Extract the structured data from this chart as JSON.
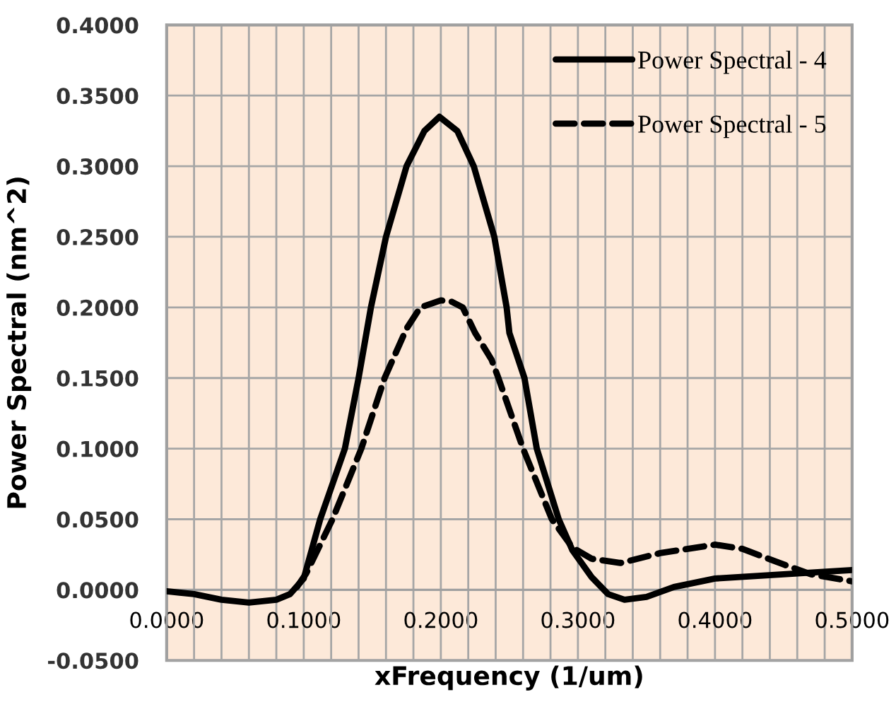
{
  "chart_data": {
    "type": "line",
    "xlabel": "xFrequency (1/um)",
    "ylabel": "Power Spectral (nm^2)",
    "xlim": [
      0,
      0.5
    ],
    "ylim": [
      -0.05,
      0.4
    ],
    "xticks": [
      {
        "value": 0,
        "label": "0.0000"
      },
      {
        "value": 0.02,
        "label": null
      },
      {
        "value": 0.04,
        "label": null
      },
      {
        "value": 0.06,
        "label": null
      },
      {
        "value": 0.08,
        "label": null
      },
      {
        "value": 0.1,
        "label": "0.1000"
      },
      {
        "value": 0.12,
        "label": null
      },
      {
        "value": 0.14,
        "label": null
      },
      {
        "value": 0.16,
        "label": null
      },
      {
        "value": 0.18,
        "label": null
      },
      {
        "value": 0.2,
        "label": "0.2000"
      },
      {
        "value": 0.22,
        "label": null
      },
      {
        "value": 0.24,
        "label": null
      },
      {
        "value": 0.26,
        "label": null
      },
      {
        "value": 0.28,
        "label": null
      },
      {
        "value": 0.3,
        "label": "0.3000"
      },
      {
        "value": 0.32,
        "label": null
      },
      {
        "value": 0.34,
        "label": null
      },
      {
        "value": 0.36,
        "label": null
      },
      {
        "value": 0.38,
        "label": null
      },
      {
        "value": 0.4,
        "label": "0.4000"
      },
      {
        "value": 0.42,
        "label": null
      },
      {
        "value": 0.44,
        "label": null
      },
      {
        "value": 0.46,
        "label": null
      },
      {
        "value": 0.48,
        "label": null
      },
      {
        "value": 0.5,
        "label": "0.5000"
      }
    ],
    "yticks": [
      {
        "value": -0.05,
        "label": "-0.0500"
      },
      {
        "value": 0,
        "label": "0.0000"
      },
      {
        "value": 0.05,
        "label": "0.0500"
      },
      {
        "value": 0.1,
        "label": "0.1000"
      },
      {
        "value": 0.15,
        "label": "0.1500"
      },
      {
        "value": 0.2,
        "label": "0.2000"
      },
      {
        "value": 0.25,
        "label": "0.2500"
      },
      {
        "value": 0.3,
        "label": "0.3000"
      },
      {
        "value": 0.35,
        "label": "0.3500"
      },
      {
        "value": 0.4,
        "label": "0.4000"
      }
    ],
    "grid": true,
    "legend": "top right",
    "marker": "none",
    "series": [
      {
        "name": "Power Spectral - 4",
        "color": "#000000",
        "line_style": "solid",
        "x": [
          0,
          0.02,
          0.04,
          0.06,
          0.08,
          0.09,
          0.1,
          0.112,
          0.13,
          0.14,
          0.149,
          0.16,
          0.175,
          0.188,
          0.199,
          0.212,
          0.224,
          0.239,
          0.248,
          0.25,
          0.261,
          0.27,
          0.286,
          0.296,
          0.31,
          0.322,
          0.334,
          0.35,
          0.37,
          0.4,
          0.45,
          0.5
        ],
        "values": [
          -0.001,
          -0.003,
          -0.007,
          -0.009,
          -0.007,
          -0.003,
          0.008,
          0.05,
          0.1,
          0.15,
          0.2,
          0.25,
          0.3,
          0.325,
          0.335,
          0.325,
          0.3,
          0.25,
          0.2,
          0.182,
          0.15,
          0.1,
          0.05,
          0.028,
          0.009,
          -0.003,
          -0.007,
          -0.005,
          0.002,
          0.008,
          0.011,
          0.014
        ]
      },
      {
        "name": "Power Spectral - 5",
        "color": "#000000",
        "line_style": "dashed",
        "x": [
          0.095,
          0.102,
          0.121,
          0.142,
          0.159,
          0.175,
          0.185,
          0.2,
          0.208,
          0.216,
          0.225,
          0.237,
          0.242,
          0.26,
          0.281,
          0.296,
          0.31,
          0.331,
          0.36,
          0.4,
          0.42,
          0.45,
          0.47,
          0.5
        ],
        "values": [
          0.002,
          0.012,
          0.05,
          0.1,
          0.15,
          0.185,
          0.2,
          0.205,
          0.204,
          0.2,
          0.182,
          0.163,
          0.15,
          0.1,
          0.05,
          0.03,
          0.022,
          0.019,
          0.026,
          0.032,
          0.029,
          0.018,
          0.011,
          0.006
        ]
      }
    ]
  }
}
